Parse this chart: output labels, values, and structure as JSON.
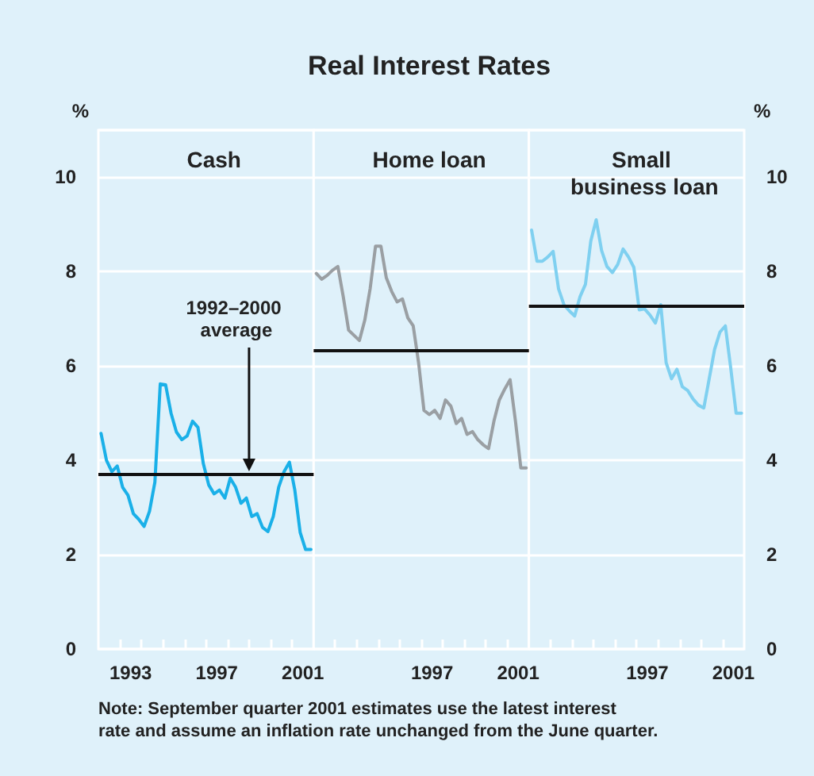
{
  "chart_data": [
    {
      "type": "line",
      "subtitle": "Cash",
      "ylabel": "%",
      "x": [
        1992.125,
        1992.375,
        1992.625,
        1992.875,
        1993.125,
        1993.375,
        1993.625,
        1993.875,
        1994.125,
        1994.375,
        1994.625,
        1994.875,
        1995.125,
        1995.375,
        1995.625,
        1995.875,
        1996.125,
        1996.375,
        1996.625,
        1996.875,
        1997.125,
        1997.375,
        1997.625,
        1997.875,
        1998.125,
        1998.375,
        1998.625,
        1998.875,
        1999.125,
        1999.375,
        1999.625,
        1999.875,
        2000.125,
        2000.375,
        2000.625,
        2000.875,
        2001.125,
        2001.375,
        2001.625,
        2001.875
      ],
      "series": [
        {
          "color": "#1ab0e8",
          "values": [
            4.57,
            4.0,
            3.76,
            3.88,
            3.43,
            3.26,
            2.87,
            2.75,
            2.6,
            2.92,
            3.54,
            5.62,
            5.6,
            5.0,
            4.6,
            4.44,
            4.52,
            4.83,
            4.7,
            3.93,
            3.48,
            3.29,
            3.37,
            3.2,
            3.62,
            3.43,
            3.09,
            3.2,
            2.81,
            2.87,
            2.58,
            2.49,
            2.81,
            3.43,
            3.76,
            3.96,
            3.37,
            2.47,
            2.11,
            2.11
          ]
        }
      ],
      "xlim": [
        1992,
        2002
      ],
      "xticks": [
        {
          "value": 1993,
          "label": null
        },
        {
          "value": 1994,
          "label": null
        },
        {
          "value": 1995,
          "label": null
        },
        {
          "value": 1996,
          "label": null
        },
        {
          "value": 1997,
          "label": null
        },
        {
          "value": 1998,
          "label": null
        },
        {
          "value": 1999,
          "label": null
        },
        {
          "value": 2000,
          "label": null
        },
        {
          "value": 2001,
          "label": null
        },
        {
          "value": 1993.5,
          "label": "1993"
        },
        {
          "value": 1997.5,
          "label": "1997"
        },
        {
          "value": 2001.5,
          "label": "2001"
        }
      ],
      "ylim": [
        0,
        11
      ],
      "yticks": [
        0,
        2,
        4,
        6,
        8,
        10
      ],
      "grid": "y",
      "ref_lines": [
        {
          "axis": "y",
          "value": 3.7,
          "color": "#111111"
        }
      ],
      "annotations": [
        {
          "text": "1992–2000 average",
          "x": 1999,
          "y": 3.7
        },
        "Note: September quarter 2001 estimates use the latest interest rate and assume an inflation rate unchanged from the June quarter."
      ]
    },
    {
      "type": "line",
      "title": "Real Interest Rates",
      "subtitle": "Home loan",
      "x": [
        1992.125,
        1992.375,
        1992.625,
        1992.875,
        1993.125,
        1993.375,
        1993.625,
        1993.875,
        1994.125,
        1994.375,
        1994.625,
        1994.875,
        1995.125,
        1995.375,
        1995.625,
        1995.875,
        1996.125,
        1996.375,
        1996.625,
        1996.875,
        1997.125,
        1997.375,
        1997.625,
        1997.875,
        1998.125,
        1998.375,
        1998.625,
        1998.875,
        1999.125,
        1999.375,
        1999.625,
        1999.875,
        2000.125,
        2000.375,
        2000.625,
        2000.875,
        2001.125,
        2001.375,
        2001.625,
        2001.875
      ],
      "series": [
        {
          "color": "#9a9fa3",
          "values": [
            7.96,
            7.84,
            7.92,
            8.03,
            8.11,
            7.47,
            6.76,
            6.65,
            6.54,
            6.97,
            7.64,
            8.54,
            8.54,
            7.87,
            7.58,
            7.36,
            7.42,
            7.02,
            6.85,
            6.07,
            5.06,
            4.97,
            5.06,
            4.89,
            5.28,
            5.15,
            4.78,
            4.89,
            4.55,
            4.61,
            4.44,
            4.33,
            4.25,
            4.83,
            5.28,
            5.51,
            5.71,
            4.83,
            3.84,
            3.84
          ]
        }
      ],
      "xlim": [
        1992,
        2002
      ],
      "xticks": [
        {
          "value": 1993,
          "label": null
        },
        {
          "value": 1994,
          "label": null
        },
        {
          "value": 1995,
          "label": null
        },
        {
          "value": 1996,
          "label": null
        },
        {
          "value": 1997,
          "label": null
        },
        {
          "value": 1998,
          "label": null
        },
        {
          "value": 1999,
          "label": null
        },
        {
          "value": 2000,
          "label": null
        },
        {
          "value": 2001,
          "label": null
        },
        {
          "value": 1997.5,
          "label": "1997"
        },
        {
          "value": 2001.5,
          "label": "2001"
        }
      ],
      "ylim": [
        0,
        11
      ],
      "yticks": [
        0,
        2,
        4,
        6,
        8,
        10
      ],
      "grid": "y",
      "tick_labels": "x",
      "ref_lines": [
        {
          "axis": "y",
          "value": 6.33,
          "color": "#111111"
        }
      ]
    },
    {
      "type": "line",
      "subtitle": "Small business loan",
      "y2label": "%",
      "x": [
        1992.125,
        1992.375,
        1992.625,
        1992.875,
        1993.125,
        1993.375,
        1993.625,
        1993.875,
        1994.125,
        1994.375,
        1994.625,
        1994.875,
        1995.125,
        1995.375,
        1995.625,
        1995.875,
        1996.125,
        1996.375,
        1996.625,
        1996.875,
        1997.125,
        1997.375,
        1997.625,
        1997.875,
        1998.125,
        1998.375,
        1998.625,
        1998.875,
        1999.125,
        1999.375,
        1999.625,
        1999.875,
        2000.125,
        2000.375,
        2000.625,
        2000.875,
        2001.125,
        2001.375,
        2001.625,
        2001.875
      ],
      "series": [
        {
          "color": "#7fd0f0",
          "axis": "y2",
          "values": [
            8.88,
            8.22,
            8.22,
            8.31,
            8.43,
            7.64,
            7.3,
            7.17,
            7.06,
            7.47,
            7.73,
            8.65,
            9.1,
            8.45,
            8.11,
            7.98,
            8.15,
            8.48,
            8.31,
            8.09,
            7.19,
            7.21,
            7.08,
            6.91,
            7.3,
            6.07,
            5.73,
            5.93,
            5.56,
            5.48,
            5.3,
            5.17,
            5.11,
            5.73,
            6.35,
            6.72,
            6.85,
            5.96,
            5.0,
            5.0
          ]
        }
      ],
      "xlim": [
        1992,
        2002
      ],
      "xticks": [
        {
          "value": 1993,
          "label": null
        },
        {
          "value": 1994,
          "label": null
        },
        {
          "value": 1995,
          "label": null
        },
        {
          "value": 1996,
          "label": null
        },
        {
          "value": 1997,
          "label": null
        },
        {
          "value": 1998,
          "label": null
        },
        {
          "value": 1999,
          "label": null
        },
        {
          "value": 2000,
          "label": null
        },
        {
          "value": 2001,
          "label": null
        },
        {
          "value": 1997.5,
          "label": "1997"
        },
        {
          "value": 2001.5,
          "label": "2001"
        }
      ],
      "y2lim": [
        0,
        11
      ],
      "y2ticks": [
        0,
        2,
        4,
        6,
        8,
        10
      ],
      "grid": "y",
      "ref_lines": [
        {
          "axis": "y2",
          "value": 7.28,
          "color": "#111111"
        }
      ]
    }
  ]
}
